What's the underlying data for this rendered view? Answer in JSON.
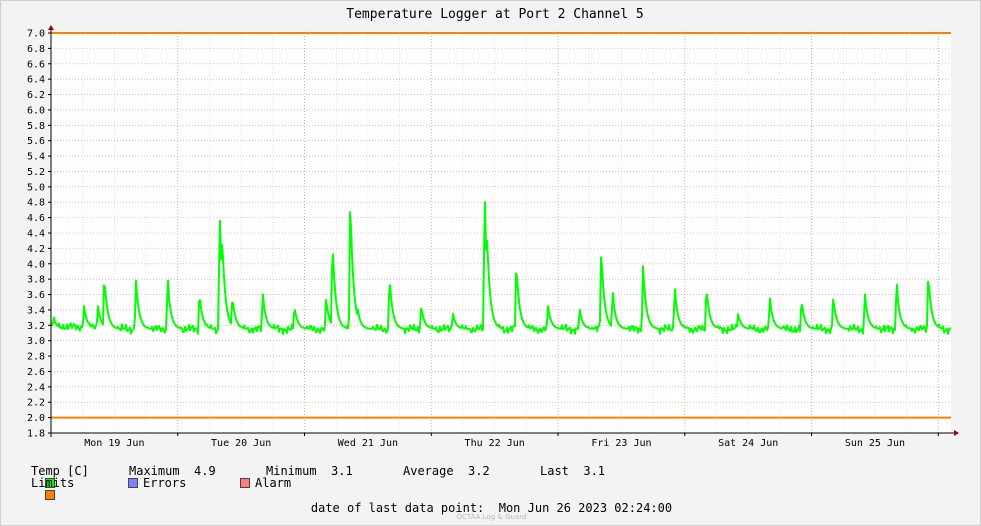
{
  "chart_data": {
    "type": "line",
    "title": "Temperature Logger at Port 2 Channel 5",
    "ylim": [
      1.8,
      7.0
    ],
    "y_ticks": [
      "7.0",
      "6.8",
      "6.6",
      "6.4",
      "6.2",
      "6.0",
      "5.8",
      "5.6",
      "5.4",
      "5.2",
      "5.0",
      "4.8",
      "4.6",
      "4.4",
      "4.2",
      "4.0",
      "3.8",
      "3.6",
      "3.4",
      "3.2",
      "3.0",
      "2.8",
      "2.6",
      "2.4",
      "2.2",
      "2.0",
      "1.8"
    ],
    "x_labels": [
      "Mon 19 Jun",
      "Tue 20 Jun",
      "Wed 21 Jun",
      "Thu 22 Jun",
      "Fri 23 Jun",
      "Sat 24 Jun",
      "Sun 25 Jun"
    ],
    "grid": true,
    "limits": {
      "upper": 7.0,
      "lower": 2.0,
      "color": "#ff7f00"
    },
    "series": [
      {
        "name": "Temp [C]",
        "color": "#00ff00",
        "baseline": 3.15,
        "peaks": [
          {
            "day": 0.02,
            "value": 3.3
          },
          {
            "day": 0.26,
            "value": 3.45
          },
          {
            "day": 0.37,
            "value": 3.45
          },
          {
            "day": 0.42,
            "value": 3.85
          },
          {
            "day": 0.67,
            "value": 3.78
          },
          {
            "day": 0.92,
            "value": 3.78
          },
          {
            "day": 1.17,
            "value": 3.62
          },
          {
            "day": 1.33,
            "value": 4.56
          },
          {
            "day": 1.35,
            "value": 4.37
          },
          {
            "day": 1.43,
            "value": 3.58
          },
          {
            "day": 1.67,
            "value": 3.6
          },
          {
            "day": 1.92,
            "value": 3.45
          },
          {
            "day": 2.17,
            "value": 3.55
          },
          {
            "day": 2.22,
            "value": 4.32
          },
          {
            "day": 2.36,
            "value": 4.88
          },
          {
            "day": 2.42,
            "value": 3.4
          },
          {
            "day": 2.67,
            "value": 3.83
          },
          {
            "day": 2.92,
            "value": 3.45
          },
          {
            "day": 3.17,
            "value": 3.35
          },
          {
            "day": 3.42,
            "value": 4.8
          },
          {
            "day": 3.44,
            "value": 4.35
          },
          {
            "day": 3.67,
            "value": 4.02
          },
          {
            "day": 3.92,
            "value": 3.45
          },
          {
            "day": 4.17,
            "value": 3.4
          },
          {
            "day": 4.34,
            "value": 4.2
          },
          {
            "day": 4.43,
            "value": 3.62
          },
          {
            "day": 4.67,
            "value": 3.97
          },
          {
            "day": 4.92,
            "value": 3.67
          },
          {
            "day": 5.17,
            "value": 3.7
          },
          {
            "day": 5.42,
            "value": 3.35
          },
          {
            "day": 5.67,
            "value": 3.55
          },
          {
            "day": 5.92,
            "value": 3.53
          },
          {
            "day": 6.17,
            "value": 3.57
          },
          {
            "day": 6.42,
            "value": 3.6
          },
          {
            "day": 6.67,
            "value": 3.73
          },
          {
            "day": 6.92,
            "value": 3.87
          }
        ]
      }
    ]
  },
  "legend": {
    "temp_label": "Temp [C]",
    "maximum": "Maximum  4.9",
    "minimum": "Minimum  3.1",
    "average": "Average  3.2",
    "last": "Last  3.1",
    "limits_label": "Limits",
    "errors_label": "Errors",
    "alarm_label": "Alarm",
    "colors": {
      "temp": "#00ff00",
      "limits": "#ff7f00",
      "errors": "#7f7fff",
      "alarm": "#ff7f7f"
    }
  },
  "footer": {
    "last_point": "date of last data point:  Mon Jun 26 2023 02:24:00",
    "credit": "OCTAA Log & Guard"
  }
}
